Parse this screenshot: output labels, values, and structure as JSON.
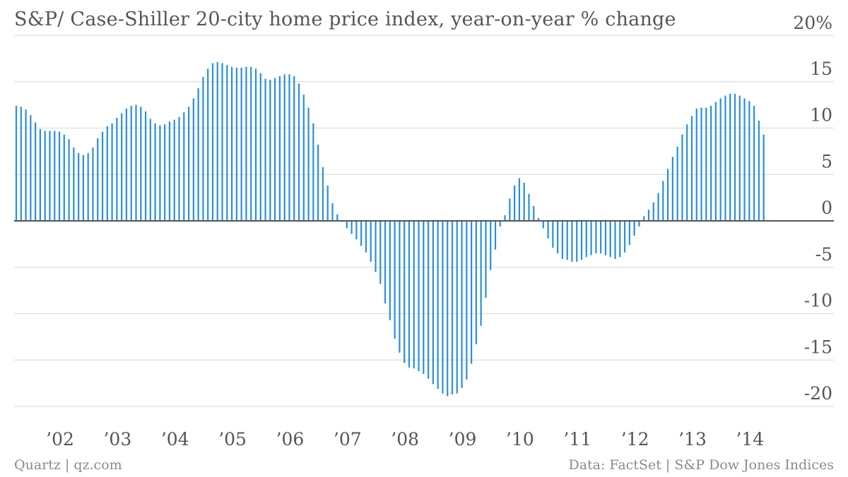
{
  "title": "S&P/ Case-Shiller 20-city home price index, year-on-year % change",
  "footer": {
    "source_left": "Quartz | qz.com",
    "source_right": "Data: FactSet | S&P Dow Jones Indices"
  },
  "colors": {
    "bar": "#2a8fdb",
    "grid": "#dddddd",
    "zero_line": "#555555",
    "text": "#555555"
  },
  "chart_data": {
    "type": "bar",
    "x_start": "2001-04",
    "frequency": "monthly",
    "ylim": [
      -20,
      20
    ],
    "y_ticks": [
      {
        "value": 20,
        "label": "20%"
      },
      {
        "value": 15,
        "label": "15"
      },
      {
        "value": 10,
        "label": "10"
      },
      {
        "value": 5,
        "label": "5"
      },
      {
        "value": 0,
        "label": "0"
      },
      {
        "value": -5,
        "label": "-5"
      },
      {
        "value": -10,
        "label": "-10"
      },
      {
        "value": -15,
        "label": "-15"
      },
      {
        "value": -20,
        "label": "-20"
      }
    ],
    "x_ticks": [
      {
        "year": 2002,
        "label": "’02"
      },
      {
        "year": 2003,
        "label": "’03"
      },
      {
        "year": 2004,
        "label": "’04"
      },
      {
        "year": 2005,
        "label": "’05"
      },
      {
        "year": 2006,
        "label": "’06"
      },
      {
        "year": 2007,
        "label": "’07"
      },
      {
        "year": 2008,
        "label": "’08"
      },
      {
        "year": 2009,
        "label": "’09"
      },
      {
        "year": 2010,
        "label": "’10"
      },
      {
        "year": 2011,
        "label": "’11"
      },
      {
        "year": 2012,
        "label": "’12"
      },
      {
        "year": 2013,
        "label": "’13"
      },
      {
        "year": 2014,
        "label": "’14"
      }
    ],
    "values": [
      12.4,
      12.3,
      12.0,
      11.4,
      10.6,
      9.9,
      9.7,
      9.7,
      9.7,
      9.6,
      9.3,
      8.8,
      7.9,
      7.3,
      7.1,
      7.3,
      7.9,
      8.9,
      9.6,
      10.2,
      10.5,
      11.1,
      11.6,
      12.1,
      12.4,
      12.5,
      12.3,
      11.8,
      11.0,
      10.5,
      10.3,
      10.4,
      10.7,
      10.9,
      11.2,
      11.7,
      12.3,
      13.2,
      14.3,
      15.5,
      16.4,
      17.0,
      17.1,
      17.0,
      16.8,
      16.6,
      16.5,
      16.5,
      16.6,
      16.6,
      16.4,
      15.9,
      15.3,
      15.2,
      15.4,
      15.6,
      15.8,
      15.8,
      15.6,
      14.8,
      13.6,
      12.2,
      10.5,
      8.2,
      5.8,
      3.8,
      1.9,
      0.7,
      -0.1,
      -0.8,
      -1.4,
      -2.0,
      -2.7,
      -3.4,
      -4.4,
      -5.5,
      -6.8,
      -8.9,
      -10.7,
      -12.7,
      -14.2,
      -15.3,
      -15.8,
      -15.9,
      -16.2,
      -16.5,
      -17.0,
      -17.6,
      -18.1,
      -18.6,
      -18.9,
      -18.7,
      -18.6,
      -18.0,
      -17.1,
      -15.4,
      -13.3,
      -11.3,
      -8.3,
      -5.3,
      -3.1,
      -0.6,
      0.6,
      2.4,
      3.8,
      4.6,
      4.1,
      2.9,
      1.6,
      0.3,
      -0.8,
      -1.9,
      -2.9,
      -3.5,
      -4.1,
      -4.2,
      -4.4,
      -4.4,
      -4.2,
      -3.9,
      -3.7,
      -3.5,
      -3.5,
      -3.7,
      -3.9,
      -4.1,
      -3.9,
      -3.4,
      -2.6,
      -1.6,
      -0.6,
      0.5,
      1.2,
      2.0,
      3.0,
      4.3,
      5.6,
      6.9,
      8.0,
      9.3,
      10.4,
      11.3,
      12.1,
      12.2,
      12.2,
      12.4,
      12.8,
      13.2,
      13.5,
      13.7,
      13.7,
      13.5,
      13.2,
      12.9,
      12.4,
      10.8,
      9.3
    ]
  }
}
